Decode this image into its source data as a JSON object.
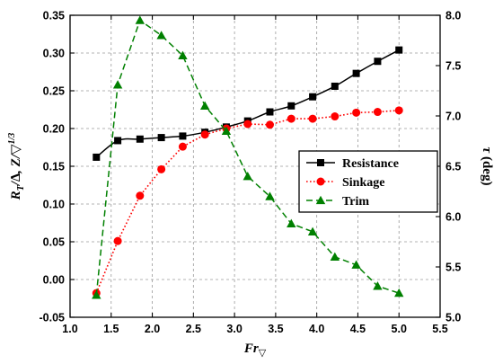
{
  "chart_data": {
    "type": "line",
    "xlabel": {
      "main": "Fr",
      "sub": "▽"
    },
    "ylabel_left": {
      "pre": "R",
      "sub": "T",
      "mid": "/∆, Z/▽",
      "sup": "1/3"
    },
    "ylabel_right": {
      "sym": "τ",
      "unit": " (deg)"
    },
    "xlim": [
      1.0,
      5.5
    ],
    "ylim_left": [
      -0.05,
      0.35
    ],
    "ylim_right": [
      5.0,
      8.0
    ],
    "x_ticks": [
      "1.0",
      "1.5",
      "2.0",
      "2.5",
      "3.0",
      "3.5",
      "4.0",
      "4.5",
      "5.0",
      "5.5"
    ],
    "y_left_ticks": [
      "-0.05",
      "0.00",
      "0.05",
      "0.10",
      "0.15",
      "0.20",
      "0.25",
      "0.30",
      "0.35"
    ],
    "y_right_ticks": [
      "5.0",
      "5.5",
      "6.0",
      "6.5",
      "7.0",
      "7.5",
      "8.0"
    ],
    "grid": true,
    "legend_position": "center-right",
    "series": [
      {
        "name": "Resistance",
        "axis": "left",
        "color": "#000000",
        "marker": "square",
        "line_style": "solid",
        "x": [
          1.32,
          1.58,
          1.85,
          2.11,
          2.37,
          2.64,
          2.9,
          3.16,
          3.43,
          3.69,
          3.95,
          4.22,
          4.48,
          4.74,
          5.0
        ],
        "y": [
          0.162,
          0.184,
          0.186,
          0.188,
          0.19,
          0.195,
          0.202,
          0.21,
          0.222,
          0.23,
          0.242,
          0.256,
          0.273,
          0.289,
          0.304
        ]
      },
      {
        "name": "Sinkage",
        "axis": "left",
        "color": "#ff0000",
        "marker": "circle",
        "line_style": "dotted",
        "x": [
          1.32,
          1.58,
          1.85,
          2.11,
          2.37,
          2.64,
          2.9,
          3.16,
          3.43,
          3.69,
          3.95,
          4.22,
          4.48,
          4.74,
          5.0
        ],
        "y": [
          -0.018,
          0.051,
          0.111,
          0.146,
          0.176,
          0.192,
          0.2,
          0.206,
          0.205,
          0.213,
          0.213,
          0.216,
          0.221,
          0.222,
          0.224
        ]
      },
      {
        "name": "Trim",
        "axis": "right",
        "color": "#008000",
        "marker": "triangle",
        "line_style": "dashed",
        "x": [
          1.32,
          1.58,
          1.85,
          2.11,
          2.37,
          2.64,
          2.9,
          3.16,
          3.43,
          3.69,
          3.95,
          4.22,
          4.48,
          4.74,
          5.0
        ],
        "y": [
          5.22,
          7.31,
          7.95,
          7.8,
          7.6,
          7.1,
          6.85,
          6.4,
          6.2,
          5.93,
          5.85,
          5.6,
          5.52,
          5.31,
          5.24
        ]
      }
    ]
  }
}
